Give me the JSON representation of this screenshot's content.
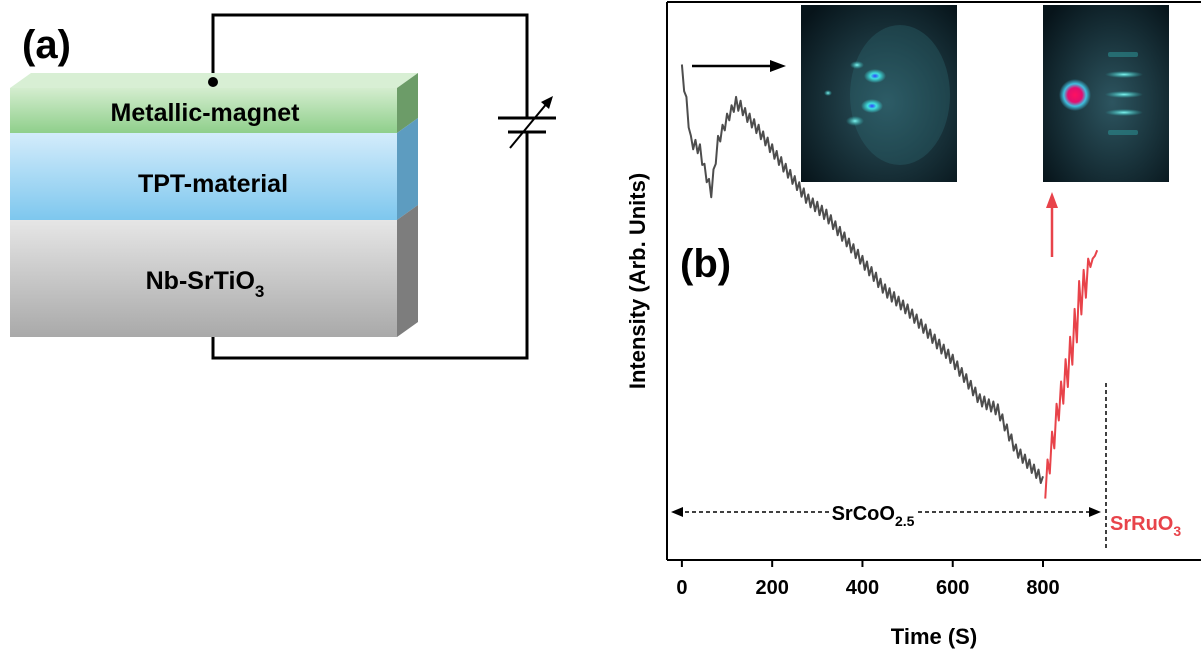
{
  "panel_a": {
    "label": "(a)",
    "layers": [
      {
        "text": "Metallic-magnet"
      },
      {
        "text": "TPT-material"
      },
      {
        "text": "Nb-SrTiO",
        "sub": "3"
      }
    ]
  },
  "chart_data": {
    "type": "line",
    "panel_label": "(b)",
    "x_label": "Time (S)",
    "y_label": "Intensity (Arb. Units)",
    "xlim": [
      -33,
      1150
    ],
    "ylim": [
      0,
      100
    ],
    "xticks": [
      0,
      200,
      400,
      600,
      800
    ],
    "series": [
      {
        "color": "#4d4d4d",
        "x": [
          0,
          5,
          10,
          15,
          20,
          25,
          30,
          35,
          40,
          45,
          50,
          55,
          60,
          65,
          70,
          75,
          80,
          85,
          90,
          95,
          100,
          105,
          110,
          115,
          120,
          125,
          130,
          135,
          140,
          145,
          150,
          155,
          160,
          165,
          170,
          175,
          180,
          185,
          190,
          195,
          200,
          205,
          210,
          215,
          220,
          225,
          230,
          235,
          240,
          245,
          250,
          255,
          260,
          265,
          270,
          275,
          280,
          285,
          290,
          295,
          300,
          305,
          310,
          315,
          320,
          325,
          330,
          335,
          340,
          345,
          350,
          355,
          360,
          365,
          370,
          375,
          380,
          385,
          390,
          395,
          400,
          405,
          410,
          415,
          420,
          425,
          430,
          435,
          440,
          445,
          450,
          455,
          460,
          465,
          470,
          475,
          480,
          485,
          490,
          495,
          500,
          505,
          510,
          515,
          520,
          525,
          530,
          535,
          540,
          545,
          550,
          555,
          560,
          565,
          570,
          575,
          580,
          585,
          590,
          595,
          600,
          605,
          610,
          615,
          620,
          625,
          630,
          635,
          640,
          645,
          650,
          655,
          660,
          665,
          670,
          675,
          680,
          685,
          690,
          695,
          700,
          705,
          710,
          715,
          720,
          725,
          730,
          735,
          740,
          745,
          750,
          755,
          760,
          765,
          770,
          775,
          780,
          785,
          790,
          795,
          800
        ],
        "values": [
          88.8,
          84,
          83,
          77.5,
          76,
          73.6,
          75.3,
          72.9,
          74.5,
          70.8,
          71,
          67.7,
          68.3,
          65,
          70,
          71,
          76,
          75,
          78,
          77,
          80,
          78.8,
          81.5,
          80.3,
          83,
          80.5,
          82.3,
          79.7,
          81,
          78.5,
          80,
          77.5,
          79,
          76.5,
          78,
          75.4,
          76.8,
          74.3,
          75.7,
          73.1,
          74.5,
          71.9,
          73.3,
          70.8,
          72.2,
          69.6,
          71,
          68.5,
          69.9,
          67.4,
          68.8,
          66.3,
          67.7,
          65.1,
          66.6,
          64,
          65.5,
          63.2,
          64.8,
          62.5,
          64.2,
          61.8,
          63.5,
          61.1,
          62.8,
          60.3,
          61.8,
          59.3,
          60.7,
          58.2,
          59.7,
          57.2,
          58.7,
          56.2,
          57.6,
          55.1,
          56.6,
          54.1,
          55.6,
          53.1,
          54.5,
          52,
          53.5,
          51,
          52.5,
          50,
          51.5,
          48.9,
          50.4,
          47.9,
          49.4,
          47,
          48.7,
          46.3,
          48,
          45.6,
          47.2,
          44.9,
          46.5,
          44.2,
          45.8,
          43.4,
          44.9,
          42.5,
          44,
          41.6,
          43.1,
          40.7,
          42.2,
          39.8,
          41.3,
          38.9,
          40.4,
          37.9,
          39.5,
          37,
          38.6,
          36.2,
          37.7,
          35.3,
          36.8,
          34.2,
          35.6,
          33,
          34.4,
          31.9,
          33.3,
          30.7,
          32.1,
          29.5,
          30.9,
          28.3,
          29.7,
          27.5,
          29.3,
          27,
          28.8,
          26.6,
          28.4,
          26.1,
          27.9,
          25,
          26.1,
          23.2,
          24.3,
          21.4,
          22.5,
          19.6,
          20.7,
          18.3,
          19.8,
          17.4,
          18.9,
          16.5,
          18,
          15.6,
          17.1,
          14.7,
          16.2,
          13.8,
          15
        ]
      },
      {
        "color": "#e8434a",
        "x": [
          805,
          810,
          815,
          820,
          825,
          830,
          835,
          840,
          845,
          850,
          855,
          860,
          865,
          870,
          875,
          880,
          885,
          890,
          895,
          900,
          905,
          910,
          915,
          920
        ],
        "values": [
          11,
          18,
          15.5,
          23,
          20,
          28,
          25,
          32,
          28,
          36,
          31,
          40,
          35,
          45,
          39,
          50,
          44,
          52,
          47,
          54,
          52.5,
          54,
          54.5,
          55.5
        ]
      }
    ],
    "annotations": [
      {
        "text": "SrCoO",
        "sub": "2.5",
        "color": "#000000"
      },
      {
        "text": "SrRuO",
        "sub": "3",
        "color": "#e8434a"
      }
    ]
  }
}
